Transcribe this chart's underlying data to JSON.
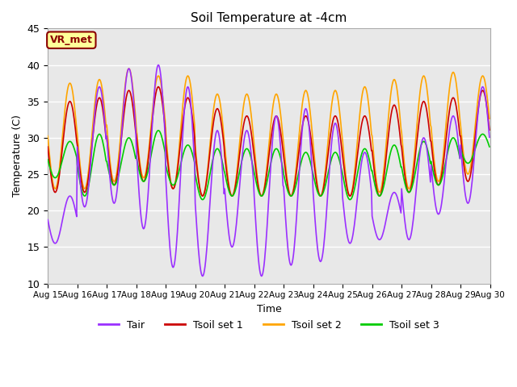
{
  "title": "Soil Temperature at -4cm",
  "xlabel": "Time",
  "ylabel": "Temperature (C)",
  "ylim": [
    10,
    45
  ],
  "colors": {
    "Tair": "#9B30FF",
    "Tsoil set 1": "#CC0000",
    "Tsoil set 2": "#FFA500",
    "Tsoil set 3": "#00CC00"
  },
  "fig_facecolor": "#FFFFFF",
  "axes_facecolor": "#E8E8E8",
  "annotation_text": "VR_met",
  "annotation_bg": "#FFFF99",
  "annotation_border": "#8B0000",
  "xtick_labels": [
    "Aug 15",
    "Aug 16",
    "Aug 17",
    "Aug 18",
    "Aug 19",
    "Aug 20",
    "Aug 21",
    "Aug 22",
    "Aug 23",
    "Aug 24",
    "Aug 25",
    "Aug 26",
    "Aug 27",
    "Aug 28",
    "Aug 29",
    "Aug 30"
  ],
  "tair_min": [
    15.5,
    20.5,
    21.0,
    17.5,
    12.2,
    11.0,
    15.0,
    11.0,
    12.5,
    13.0,
    15.5,
    16.0,
    16.0,
    19.5,
    21.0
  ],
  "tair_max": [
    22.0,
    37.0,
    39.5,
    40.0,
    37.0,
    31.0,
    31.0,
    33.0,
    34.0,
    32.0,
    28.0,
    22.5,
    30.0,
    33.0,
    37.0
  ],
  "ts1_min": [
    22.5,
    22.5,
    23.5,
    24.0,
    23.0,
    22.0,
    22.0,
    22.0,
    22.0,
    22.0,
    22.0,
    22.0,
    22.5,
    23.5,
    24.0
  ],
  "ts1_max": [
    35.0,
    35.5,
    36.5,
    37.0,
    35.5,
    34.0,
    33.0,
    33.0,
    33.0,
    33.0,
    33.0,
    34.5,
    35.0,
    35.5,
    36.5
  ],
  "ts2_min": [
    23.0,
    23.0,
    24.0,
    24.5,
    23.0,
    22.0,
    22.0,
    22.0,
    22.0,
    22.0,
    22.0,
    22.5,
    23.0,
    24.0,
    25.0
  ],
  "ts2_max": [
    37.5,
    38.0,
    39.5,
    38.5,
    38.5,
    36.0,
    36.0,
    36.0,
    36.5,
    36.5,
    37.0,
    38.0,
    38.5,
    39.0,
    38.5
  ],
  "ts3_min": [
    24.5,
    22.0,
    23.5,
    24.0,
    23.5,
    21.5,
    22.0,
    22.0,
    22.0,
    22.0,
    21.5,
    22.0,
    22.5,
    23.5,
    26.5
  ],
  "ts3_max": [
    29.5,
    30.5,
    30.0,
    31.0,
    29.0,
    28.5,
    28.5,
    28.5,
    28.0,
    28.0,
    28.5,
    29.0,
    29.5,
    30.0,
    30.5
  ]
}
